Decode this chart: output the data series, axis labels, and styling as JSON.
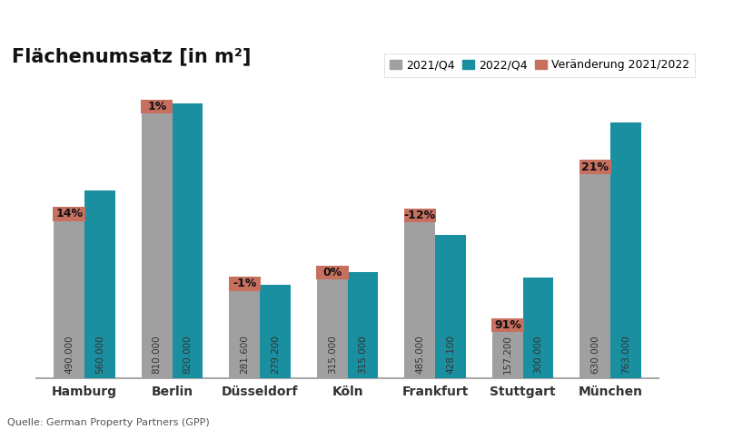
{
  "title": "Flächenumsatz [in m²]",
  "categories": [
    "Hamburg",
    "Berlin",
    "Düsseldorf",
    "Köln",
    "Frankfurt",
    "Stuttgart",
    "München"
  ],
  "values_2021": [
    490000,
    810000,
    281600,
    315000,
    485000,
    157200,
    630000
  ],
  "values_2022": [
    560000,
    820000,
    279200,
    315000,
    428100,
    300000,
    763000
  ],
  "labels_2021": [
    "490.000",
    "810.000",
    "281.600",
    "315.000",
    "485.000",
    "157.200",
    "630.000"
  ],
  "labels_2022": [
    "560.000",
    "820.000",
    "279.200",
    "315.000",
    "428.100",
    "300.000",
    "763.000"
  ],
  "changes": [
    "14%",
    "1%",
    "-1%",
    "0%",
    "-12%",
    "91%",
    "21%"
  ],
  "color_2021": "#a0a0a0",
  "color_2022": "#1a8fa0",
  "color_change_bg": "#c87060",
  "color_change_text": "#111111",
  "legend_label_2021": "2021/Q4",
  "legend_label_2022": "2022/Q4",
  "legend_change_label": "Veränderung 2021/2022",
  "source_text": "Quelle: German Property Partners (GPP)",
  "ylim": [
    0,
    880000
  ],
  "background_color": "#ffffff",
  "bar_width": 0.35
}
